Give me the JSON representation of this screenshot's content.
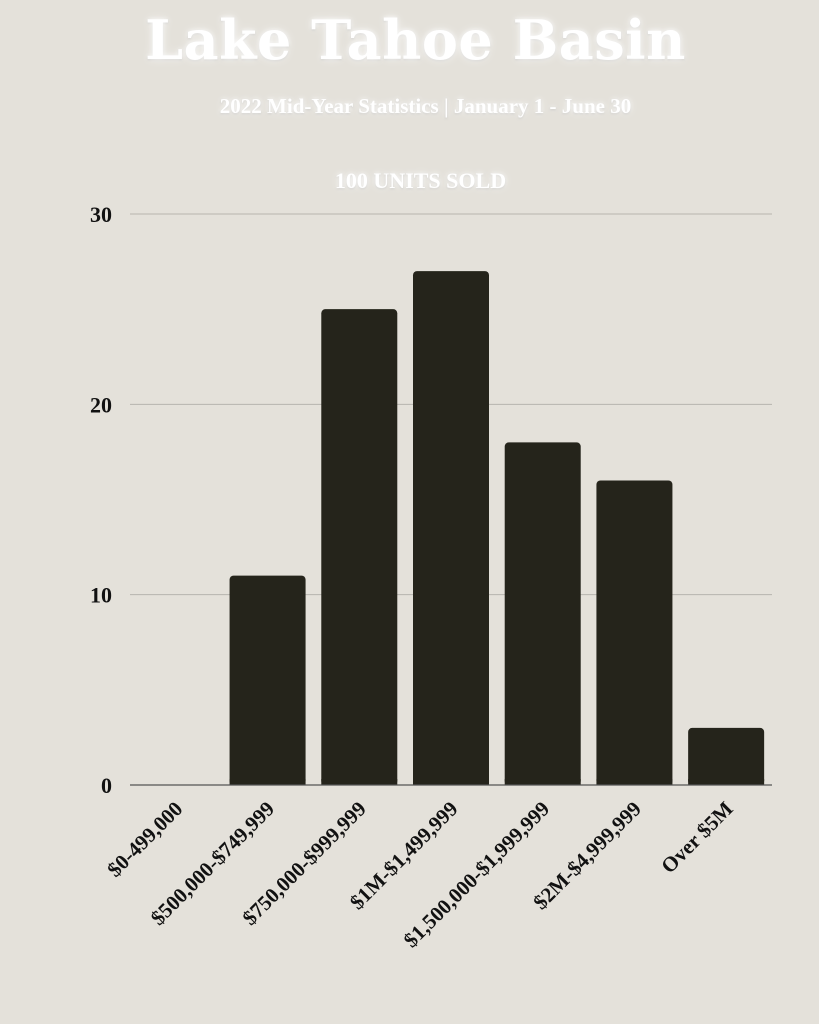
{
  "colors": {
    "background": "#e4e1da",
    "bar": "#25241b",
    "grid": "#b7b5ae",
    "axis": "#555555",
    "title": "#ffffff"
  },
  "chart_data": {
    "type": "bar",
    "title": "Lake Tahoe Basin",
    "subtitle": "2022 Mid-Year Statistics | January 1 - June 30",
    "annotation": "100  UNITS SOLD",
    "xlabel": "",
    "ylabel": "",
    "categories": [
      "$0-499,000",
      "$500,000-$749,999",
      "$750,000-$999,999",
      "$1M-$1,499,999",
      "$1,500,000-$1,999,999",
      "$2M-$4,999,999",
      "Over $5M"
    ],
    "values": [
      0,
      11,
      25,
      27,
      18,
      16,
      3
    ],
    "ylim": [
      0,
      30
    ],
    "yticks": [
      0,
      10,
      20,
      30
    ],
    "grid": true,
    "legend": "none"
  }
}
